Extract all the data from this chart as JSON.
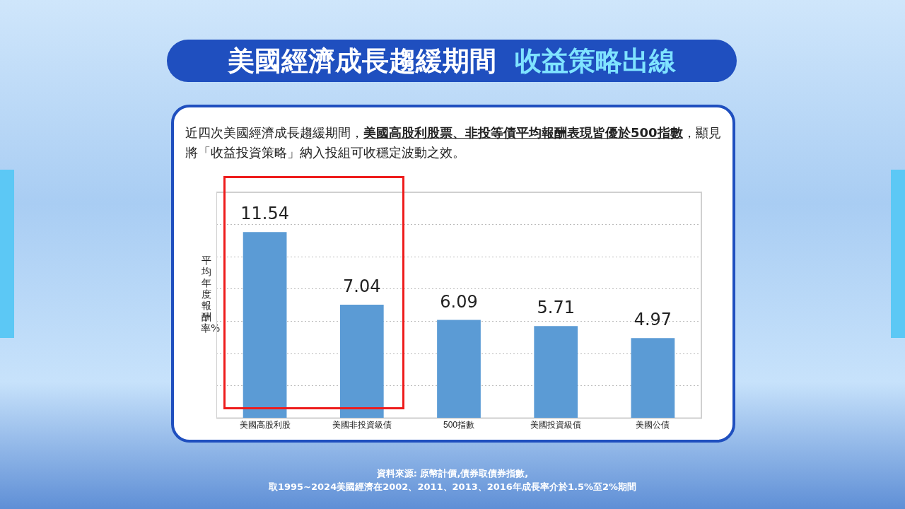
{
  "chart_data": {
    "type": "bar",
    "title": "美國經濟成長趨緩期間",
    "subtitle": "收益策略出線",
    "annotations": [
      "近四次美國經濟成長趨緩期間，",
      "美國高股利股票、非投等債平均報酬表現皆優於500指數",
      "，顯見將「收益投資策略」納入投組可收穩定波動之效。",
      "資料來源: 原幣計價,債券取債券指數,",
      "取1995~2024美國經濟在2002、2011、2013、2016年成長率介於1.5%至2%期間"
    ],
    "ylabel": "平均年度報酬率%",
    "categories": [
      "美國高股利股",
      "美國非投資級債",
      "500指數",
      "美國投資級債",
      "美國公債"
    ],
    "values": [
      11.54,
      7.04,
      6.09,
      5.71,
      4.97
    ],
    "color": "#5b9bd5",
    "ylim": [
      0,
      14
    ],
    "yticks": [
      {
        "value": 0,
        "label": null
      },
      {
        "value": 2,
        "label": null
      },
      {
        "value": 4,
        "label": null
      },
      {
        "value": 6,
        "label": null
      },
      {
        "value": 8,
        "label": null
      },
      {
        "value": 10,
        "label": null
      },
      {
        "value": 12,
        "label": null
      },
      {
        "value": 14,
        "label": null
      }
    ],
    "grid": "y",
    "tick_labels": "x",
    "data_labels": true,
    "legend": false
  }
}
